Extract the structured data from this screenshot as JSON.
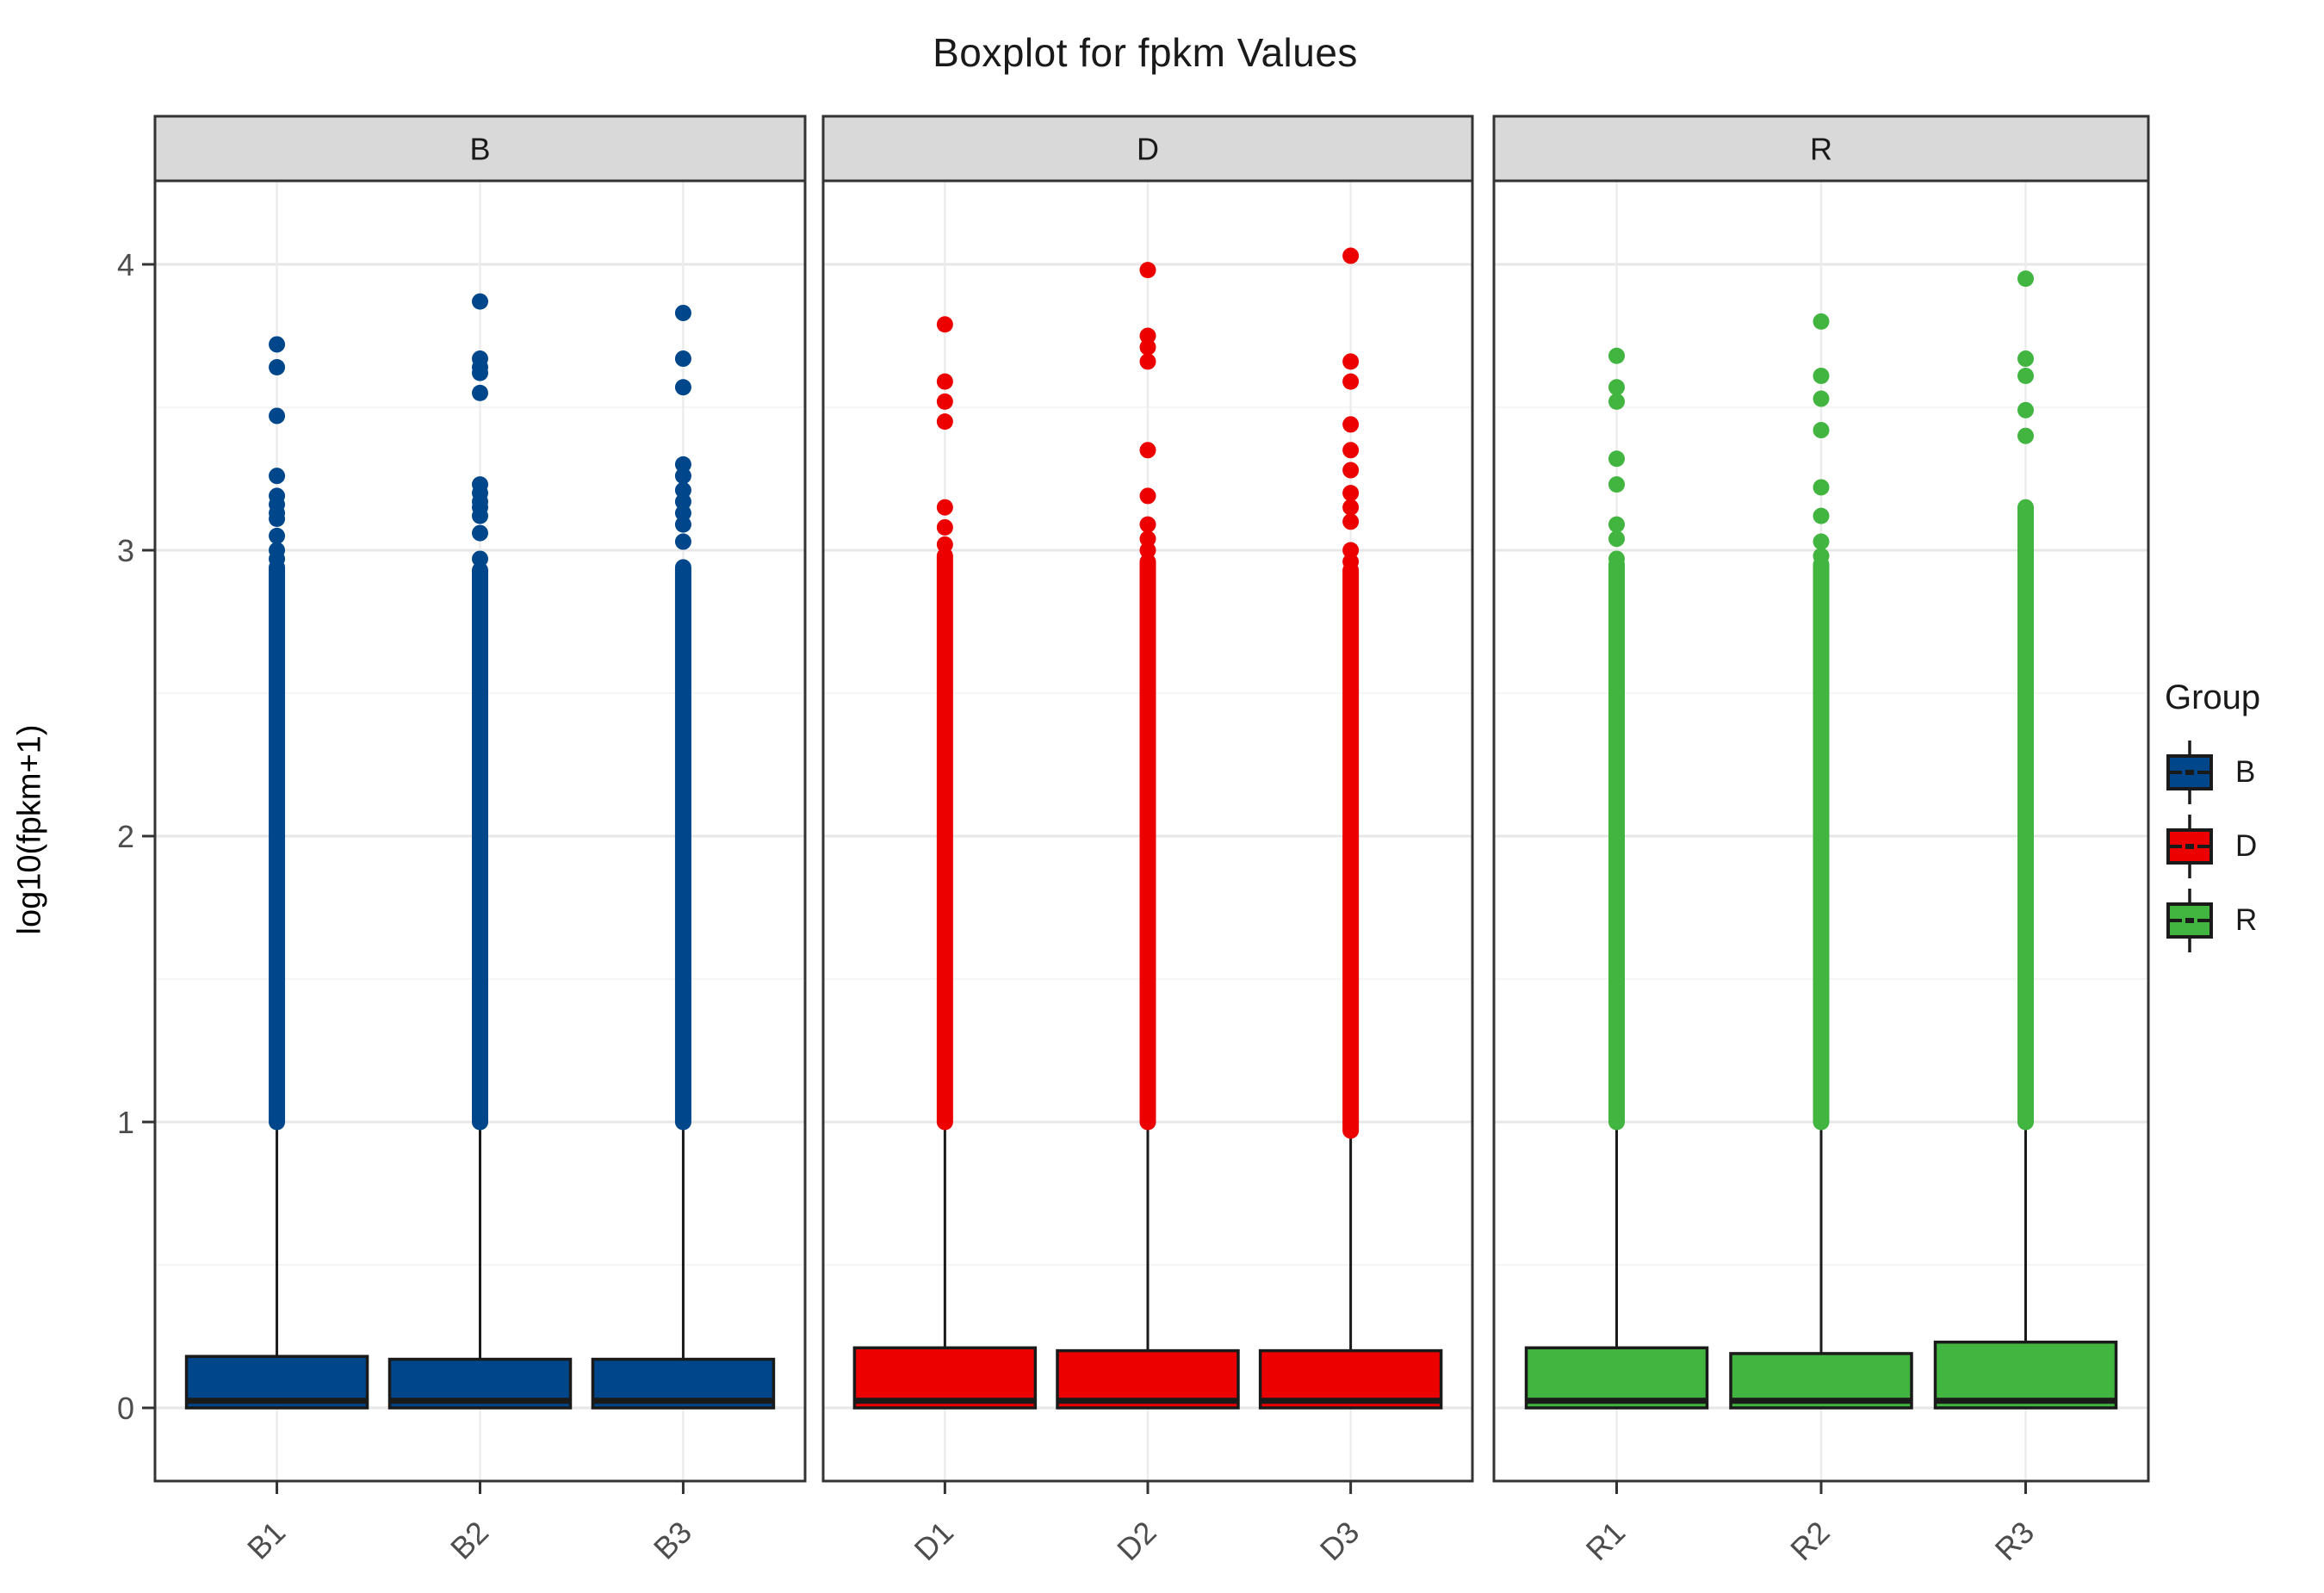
{
  "title": "Boxplot for fpkm Values",
  "legend": {
    "title": "Group",
    "entries": [
      {
        "label": "B",
        "color": "#00468B"
      },
      {
        "label": "D",
        "color": "#ED0000"
      },
      {
        "label": "R",
        "color": "#42B540"
      }
    ]
  },
  "style": {
    "strip_fill": "#D9D9D9",
    "panel_border": "#333333",
    "grid_major": "#E7E7E7",
    "grid_minor": "#F2F2F2",
    "grid_vertical": "#ECECEC",
    "tick_color": "#333333",
    "tick_label_color": "#4D4D4D",
    "box_stroke": "#1A1A1A",
    "background": "#FFFFFF"
  },
  "chart_data": {
    "type": "boxplot",
    "title": "Boxplot for fpkm Values",
    "ylabel": "log10(fpkm+1)",
    "xlabel": "",
    "y_ticks": [
      0,
      1,
      2,
      3,
      4
    ],
    "y_minor_ticks": [
      0.5,
      1.5,
      2.5,
      3.5
    ],
    "ylim": [
      -0.25,
      4.29
    ],
    "legend_position": "right",
    "grid": true,
    "facets": [
      {
        "label": "B",
        "group": "B",
        "color": "#00468B",
        "samples": [
          {
            "name": "B1",
            "q1": 0.0,
            "median": 0.025,
            "q3": 0.18,
            "whisker_low": 0.0,
            "whisker_high": 1.0,
            "dense_outlier_range": [
              1.0,
              2.94
            ],
            "outliers": [
              2.97,
              3.0,
              3.05,
              3.11,
              3.13,
              3.16,
              3.19,
              3.26,
              3.47,
              3.64,
              3.72
            ]
          },
          {
            "name": "B2",
            "q1": 0.0,
            "median": 0.025,
            "q3": 0.17,
            "whisker_low": 0.0,
            "whisker_high": 1.0,
            "dense_outlier_range": [
              1.0,
              2.93
            ],
            "outliers": [
              2.97,
              3.06,
              3.12,
              3.15,
              3.17,
              3.2,
              3.23,
              3.55,
              3.62,
              3.64,
              3.67,
              3.87
            ]
          },
          {
            "name": "B3",
            "q1": 0.0,
            "median": 0.025,
            "q3": 0.17,
            "whisker_low": 0.0,
            "whisker_high": 1.0,
            "dense_outlier_range": [
              1.0,
              2.94
            ],
            "outliers": [
              3.03,
              3.09,
              3.13,
              3.17,
              3.21,
              3.26,
              3.3,
              3.57,
              3.67,
              3.83
            ]
          }
        ]
      },
      {
        "label": "D",
        "group": "D",
        "color": "#ED0000",
        "samples": [
          {
            "name": "D1",
            "q1": 0.0,
            "median": 0.025,
            "q3": 0.21,
            "whisker_low": 0.0,
            "whisker_high": 1.0,
            "dense_outlier_range": [
              1.0,
              2.98
            ],
            "outliers": [
              3.02,
              3.08,
              3.15,
              3.45,
              3.52,
              3.59,
              3.79
            ]
          },
          {
            "name": "D2",
            "q1": 0.0,
            "median": 0.025,
            "q3": 0.2,
            "whisker_low": 0.0,
            "whisker_high": 1.0,
            "dense_outlier_range": [
              1.0,
              2.96
            ],
            "outliers": [
              3.0,
              3.04,
              3.09,
              3.19,
              3.35,
              3.66,
              3.71,
              3.75,
              3.98
            ]
          },
          {
            "name": "D3",
            "q1": 0.0,
            "median": 0.025,
            "q3": 0.2,
            "whisker_low": 0.0,
            "whisker_high": 0.97,
            "dense_outlier_range": [
              0.97,
              2.93
            ],
            "outliers": [
              2.96,
              3.0,
              3.1,
              3.15,
              3.2,
              3.28,
              3.35,
              3.44,
              3.59,
              3.66,
              4.03
            ]
          }
        ]
      },
      {
        "label": "R",
        "group": "R",
        "color": "#42B540",
        "samples": [
          {
            "name": "R1",
            "q1": 0.0,
            "median": 0.025,
            "q3": 0.21,
            "whisker_low": 0.0,
            "whisker_high": 1.0,
            "dense_outlier_range": [
              1.0,
              2.95
            ],
            "outliers": [
              2.97,
              3.04,
              3.09,
              3.23,
              3.32,
              3.52,
              3.57,
              3.68
            ]
          },
          {
            "name": "R2",
            "q1": 0.0,
            "median": 0.025,
            "q3": 0.19,
            "whisker_low": 0.0,
            "whisker_high": 1.0,
            "dense_outlier_range": [
              1.0,
              2.95
            ],
            "outliers": [
              2.98,
              3.03,
              3.12,
              3.22,
              3.42,
              3.53,
              3.61,
              3.8
            ]
          },
          {
            "name": "R3",
            "q1": 0.0,
            "median": 0.025,
            "q3": 0.23,
            "whisker_low": 0.0,
            "whisker_high": 1.0,
            "dense_outlier_range": [
              1.0,
              3.15
            ],
            "outliers": [
              3.4,
              3.49,
              3.61,
              3.67,
              3.95
            ]
          }
        ]
      }
    ]
  }
}
